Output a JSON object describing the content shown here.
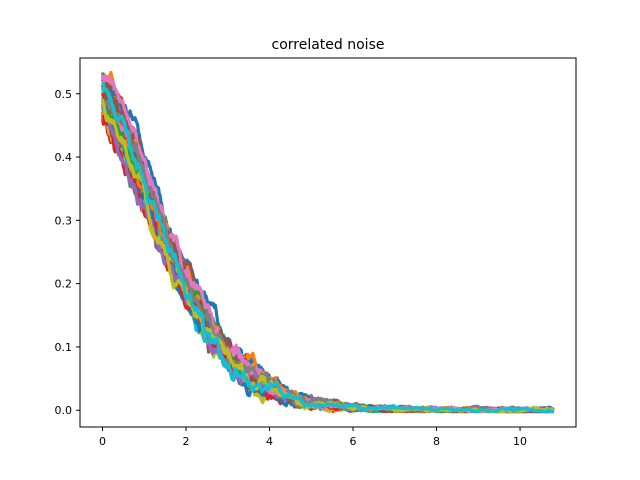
{
  "chart_data": {
    "type": "line",
    "title": "correlated noise",
    "xlabel": "",
    "ylabel": "",
    "xlim": [
      -0.54,
      11.34
    ],
    "ylim": [
      -0.0265,
      0.5565
    ],
    "x_ticks": [
      0,
      2,
      4,
      6,
      8,
      10
    ],
    "y_ticks": [
      0.0,
      0.1,
      0.2,
      0.3,
      0.4,
      0.5
    ],
    "x_tick_labels": [
      "0",
      "2",
      "4",
      "6",
      "8",
      "10"
    ],
    "y_tick_labels": [
      "0.0",
      "0.1",
      "0.2",
      "0.3",
      "0.4",
      "0.5"
    ],
    "grid": false,
    "legend": "none",
    "series_model": "Many overlapping noisy decaying curves, y ≈ c·exp(-t²/(2σ²)) with random correlated noise; approx. 40 traces spanning t=0 to 10.8",
    "x": [
      0,
      0.25,
      0.5,
      0.75,
      1.0,
      1.25,
      1.5,
      1.75,
      2.0,
      2.25,
      2.5,
      2.75,
      3.0,
      3.25,
      3.5,
      3.75,
      4.0,
      4.25,
      4.5,
      4.75,
      5.0,
      5.5,
      6.0,
      6.5,
      7.0,
      7.5,
      8.0,
      8.5,
      9.0,
      9.5,
      10.0,
      10.5,
      10.8
    ],
    "mean_curve": [
      0.495,
      0.47,
      0.435,
      0.395,
      0.352,
      0.31,
      0.268,
      0.232,
      0.198,
      0.165,
      0.138,
      0.112,
      0.09,
      0.072,
      0.057,
      0.044,
      0.034,
      0.026,
      0.02,
      0.015,
      0.011,
      0.007,
      0.004,
      0.0025,
      0.0015,
      0.001,
      0.0006,
      0.0004,
      0.0002,
      0.0001,
      0.0001,
      0.0,
      0.0
    ],
    "series_count": 40,
    "colors": [
      "#1f77b4",
      "#ff7f0e",
      "#2ca02c",
      "#d62728",
      "#9467bd",
      "#8c564b",
      "#e377c2",
      "#7f7f7f",
      "#bcbd22",
      "#17becf"
    ]
  }
}
